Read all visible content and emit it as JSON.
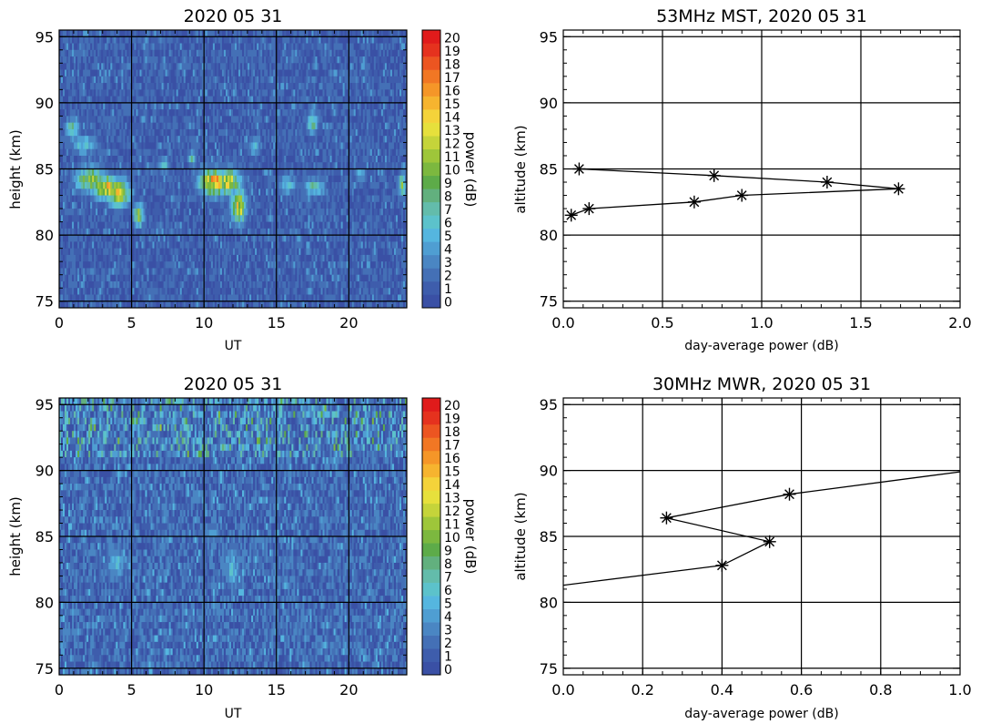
{
  "colors": {
    "background_blue": "#3a50a5",
    "gridline": "#000000",
    "colorbar": [
      "#3a50a5",
      "#3e5dac",
      "#4470b6",
      "#4a86c3",
      "#4f9ed2",
      "#55b6df",
      "#5cc2cb",
      "#63bcab",
      "#62b07e",
      "#5dab49",
      "#7cb83f",
      "#9ec63a",
      "#c5d43a",
      "#e6e03c",
      "#f4d33a",
      "#f6b42f",
      "#f59628",
      "#f17724",
      "#ec5521",
      "#e5321e",
      "#e01b1b"
    ]
  },
  "chart_data": [
    {
      "type": "heatmap",
      "title": "2020 05 31",
      "xlabel": "UT",
      "ylabel": "height (km)",
      "xlim": [
        0,
        24
      ],
      "ylim": [
        74.5,
        95.5
      ],
      "xticks": [
        0,
        5,
        10,
        15,
        20
      ],
      "yticks": [
        75,
        80,
        85,
        90,
        95
      ],
      "colorbar": {
        "label": "power (dB)",
        "min": 0,
        "max": 20,
        "ticks": [
          0,
          1,
          2,
          3,
          4,
          5,
          6,
          7,
          8,
          9,
          10,
          11,
          12,
          13,
          14,
          15,
          16,
          17,
          18,
          19,
          20
        ]
      },
      "features": [
        {
          "x": 0.9,
          "y": 88.0,
          "sx": 0.35,
          "sy": 0.6,
          "value": 7
        },
        {
          "x": 1.8,
          "y": 86.8,
          "sx": 0.6,
          "sy": 0.5,
          "value": 6
        },
        {
          "x": 2.2,
          "y": 84.2,
          "sx": 0.8,
          "sy": 0.7,
          "value": 10
        },
        {
          "x": 3.2,
          "y": 83.6,
          "sx": 0.6,
          "sy": 0.6,
          "value": 14
        },
        {
          "x": 4.1,
          "y": 83.2,
          "sx": 0.6,
          "sy": 0.7,
          "value": 13
        },
        {
          "x": 5.5,
          "y": 81.5,
          "sx": 0.25,
          "sy": 0.6,
          "value": 11
        },
        {
          "x": 7.2,
          "y": 85.3,
          "sx": 0.3,
          "sy": 0.4,
          "value": 6
        },
        {
          "x": 9.2,
          "y": 85.8,
          "sx": 0.2,
          "sy": 0.4,
          "value": 7
        },
        {
          "x": 10.7,
          "y": 84.0,
          "sx": 0.7,
          "sy": 0.7,
          "value": 15
        },
        {
          "x": 11.7,
          "y": 84.0,
          "sx": 0.6,
          "sy": 0.7,
          "value": 12
        },
        {
          "x": 12.4,
          "y": 82.2,
          "sx": 0.35,
          "sy": 0.9,
          "value": 13
        },
        {
          "x": 13.5,
          "y": 86.7,
          "sx": 0.3,
          "sy": 0.5,
          "value": 5
        },
        {
          "x": 15.8,
          "y": 83.8,
          "sx": 0.4,
          "sy": 0.5,
          "value": 6
        },
        {
          "x": 17.5,
          "y": 88.5,
          "sx": 0.3,
          "sy": 0.6,
          "value": 7
        },
        {
          "x": 17.6,
          "y": 83.6,
          "sx": 0.5,
          "sy": 0.5,
          "value": 7
        },
        {
          "x": 20.8,
          "y": 84.6,
          "sx": 0.3,
          "sy": 0.4,
          "value": 5
        },
        {
          "x": 23.7,
          "y": 83.8,
          "sx": 0.2,
          "sy": 0.6,
          "value": 9
        }
      ],
      "noise": {
        "seed": 11,
        "base_levels": [
          0,
          1,
          2
        ],
        "high_band": null
      }
    },
    {
      "type": "line",
      "title": "53MHz MST, 2020 05 31",
      "xlabel": "day-average power (dB)",
      "ylabel": "altitude (km)",
      "xlim": [
        0.0,
        2.0
      ],
      "ylim": [
        74.5,
        95.5
      ],
      "xticks": [
        0.0,
        0.5,
        1.0,
        1.5,
        2.0
      ],
      "xtick_labels": [
        "0.0",
        "0.5",
        "1.0",
        "1.5",
        "2.0"
      ],
      "yticks": [
        75,
        80,
        85,
        90,
        95
      ],
      "grid": true,
      "marker": "asterisk",
      "series": [
        {
          "points": [
            [
              0.04,
              81.5
            ],
            [
              0.13,
              82.0
            ],
            [
              0.66,
              82.5
            ],
            [
              0.9,
              83.0
            ],
            [
              1.69,
              83.5
            ],
            [
              1.33,
              84.0
            ],
            [
              0.76,
              84.5
            ],
            [
              0.08,
              85.0
            ]
          ]
        }
      ]
    },
    {
      "type": "heatmap",
      "title": "2020 05 31",
      "xlabel": "UT",
      "ylabel": "height (km)",
      "xlim": [
        0,
        24
      ],
      "ylim": [
        74.5,
        95.5
      ],
      "xticks": [
        0,
        5,
        10,
        15,
        20
      ],
      "yticks": [
        75,
        80,
        85,
        90,
        95
      ],
      "colorbar": {
        "label": "power (dB)",
        "min": 0,
        "max": 20,
        "ticks": [
          0,
          1,
          2,
          3,
          4,
          5,
          6,
          7,
          8,
          9,
          10,
          11,
          12,
          13,
          14,
          15,
          16,
          17,
          18,
          19,
          20
        ]
      },
      "features": [
        {
          "x": 4.0,
          "y": 83.0,
          "sx": 0.5,
          "sy": 0.8,
          "value": 5
        },
        {
          "x": 11.9,
          "y": 82.5,
          "sx": 0.4,
          "sy": 1.2,
          "value": 5
        },
        {
          "x": 10.5,
          "y": 85.2,
          "sx": 0.5,
          "sy": 0.5,
          "value": 4
        }
      ],
      "noise": {
        "seed": 23,
        "base_levels": [
          0,
          1,
          2,
          3
        ],
        "high_band": [
          91,
          95.5
        ]
      }
    },
    {
      "type": "line",
      "title": "30MHz MWR, 2020 05 31",
      "xlabel": "day-average power (dB)",
      "ylabel": "altitude (km)",
      "xlim": [
        0.0,
        1.0
      ],
      "ylim": [
        74.5,
        95.5
      ],
      "xticks": [
        0.0,
        0.2,
        0.4,
        0.6,
        0.8,
        1.0
      ],
      "xtick_labels": [
        "0.0",
        "0.2",
        "0.4",
        "0.6",
        "0.8",
        "1.0"
      ],
      "yticks": [
        75,
        80,
        85,
        90,
        95
      ],
      "grid": true,
      "marker": "asterisk",
      "series": [
        {
          "points": [
            [
              0.0,
              81.3
            ],
            [
              0.4,
              82.8
            ],
            [
              0.52,
              84.6
            ],
            [
              0.26,
              86.4
            ],
            [
              0.57,
              88.2
            ],
            [
              1.0,
              89.9
            ]
          ],
          "markers": [
            1,
            2,
            3,
            4
          ]
        }
      ]
    }
  ]
}
